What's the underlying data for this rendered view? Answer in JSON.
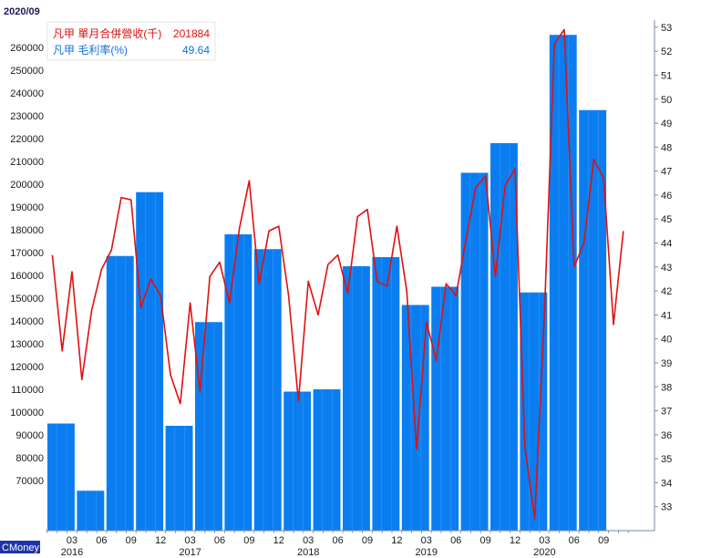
{
  "header": {
    "date": "2020/09"
  },
  "watermark": "CMoney",
  "legend": {
    "revenue_label": "凡甲 單月合併營收(千)",
    "revenue_value": "201884",
    "margin_label": "凡甲 毛利率(%)",
    "margin_value": "49.64"
  },
  "colors": {
    "bar": "#0a7ef0",
    "line": "#e01010",
    "axis": "#7a8aa8"
  },
  "chart_data": {
    "type": "bar",
    "bar_groups": [
      {
        "value": 95000,
        "from": 0,
        "to": 2
      },
      {
        "value": 65500,
        "from": 2,
        "to": 4
      },
      {
        "value": 168500,
        "from": 4,
        "to": 6
      },
      {
        "value": 196500,
        "from": 6,
        "to": 8
      },
      {
        "value": 94000,
        "from": 8,
        "to": 10
      },
      {
        "value": 139500,
        "from": 10,
        "to": 12
      },
      {
        "value": 178000,
        "from": 12,
        "to": 14
      },
      {
        "value": 171500,
        "from": 14,
        "to": 16
      },
      {
        "value": 109000,
        "from": 16,
        "to": 18
      },
      {
        "value": 110000,
        "from": 18,
        "to": 20
      },
      {
        "value": 164000,
        "from": 20,
        "to": 22
      },
      {
        "value": 168000,
        "from": 22,
        "to": 24
      },
      {
        "value": 147000,
        "from": 24,
        "to": 26
      },
      {
        "value": 155000,
        "from": 26,
        "to": 28
      },
      {
        "value": 205000,
        "from": 28,
        "to": 30
      },
      {
        "value": 218000,
        "from": 30,
        "to": 32
      },
      {
        "value": 152500,
        "from": 32,
        "to": 34
      },
      {
        "value": 265500,
        "from": 34,
        "to": 36
      },
      {
        "value": 232500,
        "from": 36,
        "to": 38
      }
    ],
    "margin_line": [
      43.5,
      39.5,
      42.8,
      38.3,
      41.2,
      42.9,
      43.7,
      45.9,
      45.8,
      41.3,
      42.5,
      41.8,
      38.5,
      37.3,
      41.5,
      37.8,
      42.6,
      43.2,
      41.5,
      44.6,
      46.6,
      42.3,
      44.5,
      44.7,
      41.8,
      37.4,
      42.4,
      41.0,
      43.1,
      43.5,
      41.9,
      45.1,
      45.4,
      42.4,
      42.2,
      44.7,
      42.0,
      35.4,
      40.7,
      39.1,
      42.3,
      41.8,
      44.1,
      46.3,
      46.8,
      42.6,
      46.4,
      47.1,
      35.5,
      32.5,
      41.2,
      52.3,
      52.9,
      43.0,
      44.0,
      47.5,
      46.7,
      40.6,
      44.5
    ],
    "x_ticks": [
      {
        "i": 2,
        "label": "03"
      },
      {
        "i": 5,
        "label": "06"
      },
      {
        "i": 8,
        "label": "09"
      },
      {
        "i": 11,
        "label": "12"
      },
      {
        "i": 14,
        "label": "03"
      },
      {
        "i": 17,
        "label": "06"
      },
      {
        "i": 20,
        "label": "09"
      },
      {
        "i": 23,
        "label": "12"
      },
      {
        "i": 26,
        "label": "03"
      },
      {
        "i": 29,
        "label": "06"
      },
      {
        "i": 32,
        "label": "09"
      },
      {
        "i": 35,
        "label": "12"
      },
      {
        "i": 38,
        "label": "03"
      },
      {
        "i": 41,
        "label": "06"
      },
      {
        "i": 44,
        "label": "09"
      },
      {
        "i": 47,
        "label": "12"
      },
      {
        "i": 50,
        "label": "03"
      },
      {
        "i": 53,
        "label": "06"
      },
      {
        "i": 56,
        "label": "09"
      }
    ],
    "year_labels": [
      {
        "i": 2,
        "label": "2016"
      },
      {
        "i": 14,
        "label": "2017"
      },
      {
        "i": 26,
        "label": "2018"
      },
      {
        "i": 38,
        "label": "2019"
      },
      {
        "i": 50,
        "label": "2020"
      }
    ],
    "y_left": {
      "min": 48000,
      "max": 272000,
      "ticks": [
        70000,
        80000,
        90000,
        100000,
        110000,
        120000,
        130000,
        140000,
        150000,
        160000,
        170000,
        180000,
        190000,
        200000,
        210000,
        220000,
        230000,
        240000,
        250000,
        260000
      ]
    },
    "y_right": {
      "min": 32.0,
      "max": 53.3,
      "ticks": [
        33,
        34,
        35,
        36,
        37,
        38,
        39,
        40,
        41,
        42,
        43,
        44,
        45,
        46,
        47,
        48,
        49,
        50,
        51,
        52,
        53
      ]
    }
  }
}
